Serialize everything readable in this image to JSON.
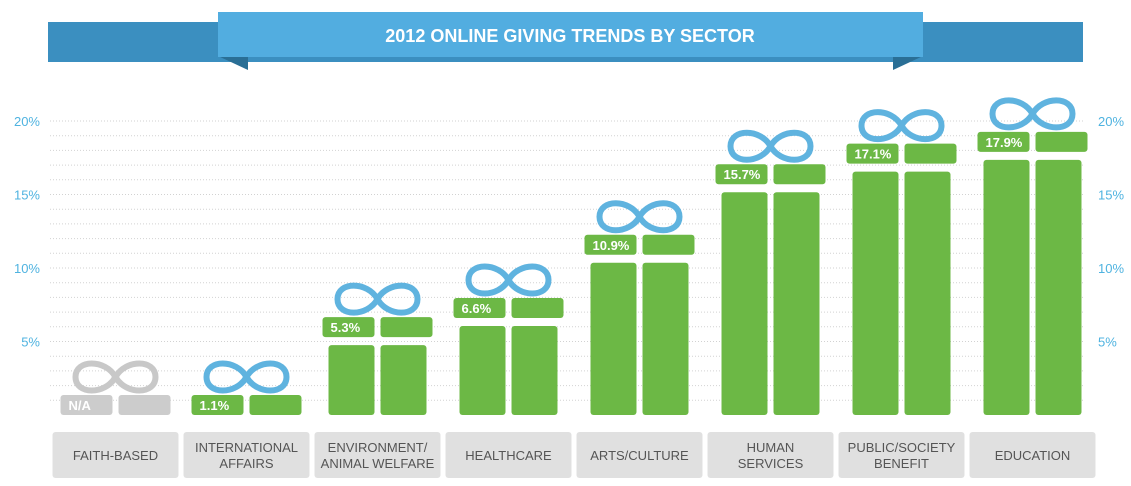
{
  "chart_data": {
    "type": "bar",
    "title": "2012 ONLINE GIVING TRENDS BY SECTOR",
    "categories": [
      [
        "FAITH-BASED"
      ],
      [
        "INTERNATIONAL",
        "AFFAIRS"
      ],
      [
        "ENVIRONMENT/",
        "ANIMAL WELFARE"
      ],
      [
        "HEALTHCARE"
      ],
      [
        "ARTS/CULTURE"
      ],
      [
        "HUMAN",
        "SERVICES"
      ],
      [
        "PUBLIC/SOCIETY",
        "BENEFIT"
      ],
      [
        "EDUCATION"
      ]
    ],
    "values": [
      null,
      1.1,
      5.3,
      6.6,
      10.9,
      15.7,
      17.1,
      17.9
    ],
    "value_labels": [
      "N/A",
      "1.1%",
      "5.3%",
      "6.6%",
      "10.9%",
      "15.7%",
      "17.1%",
      "17.9%"
    ],
    "ylim": [
      0,
      20
    ],
    "y_ticks": [
      5,
      10,
      15,
      20
    ],
    "y_tick_labels": [
      "5%",
      "10%",
      "15%",
      "20%"
    ],
    "grid": true,
    "colors": {
      "bar": "#6cb845",
      "na": "#cccccc",
      "ribbon": "#5fb3df",
      "ribbon_na": "#c8c8c8",
      "banner": "#52ade0",
      "banner_dark": "#3b8fc0",
      "label_box": "#e0e0e0",
      "axis_text": "#4fb3e0"
    }
  }
}
